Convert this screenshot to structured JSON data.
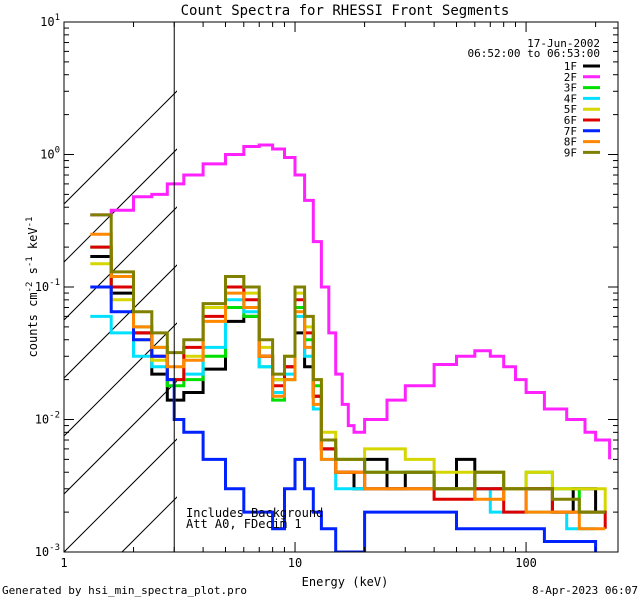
{
  "chart_data": {
    "type": "line",
    "title": "Count Spectra for RHESSI Front Segments",
    "xlabel": "Energy (keV)",
    "ylabel_parts": [
      "counts cm",
      "-2",
      " s",
      "-1",
      " keV",
      "-1"
    ],
    "x_scale": "log",
    "y_scale": "log",
    "xlim": [
      1,
      250
    ],
    "ylim": [
      0.001,
      10
    ],
    "x_ticks": [
      {
        "value": 1,
        "label": "1"
      },
      {
        "value": 10,
        "label": "10"
      },
      {
        "value": 100,
        "label": "100"
      }
    ],
    "y_ticks": [
      {
        "value": 0.001,
        "base": "10",
        "exp": "-3"
      },
      {
        "value": 0.01,
        "base": "10",
        "exp": "-2"
      },
      {
        "value": 0.1,
        "base": "10",
        "exp": "-1"
      },
      {
        "value": 1,
        "base": "10",
        "exp": "0"
      },
      {
        "value": 10,
        "base": "10",
        "exp": "1"
      }
    ],
    "date": "17-Jun-2002",
    "time_range": "06:52:00 to 06:53:00",
    "shaded_region": {
      "from": 1,
      "to": 3
    },
    "annotations": [
      "Includes Background",
      "Att A0, FDecim 1"
    ],
    "series": [
      {
        "name": "1F",
        "color": "#000000",
        "points": [
          [
            1.3,
            0.17
          ],
          [
            1.6,
            0.09
          ],
          [
            2,
            0.045
          ],
          [
            2.4,
            0.022
          ],
          [
            2.8,
            0.014
          ],
          [
            3.3,
            0.016
          ],
          [
            4,
            0.024
          ],
          [
            5,
            0.055
          ],
          [
            6,
            0.06
          ],
          [
            7,
            0.03
          ],
          [
            8,
            0.02
          ],
          [
            9,
            0.025
          ],
          [
            10,
            0.045
          ],
          [
            11,
            0.025
          ],
          [
            12,
            0.015
          ],
          [
            13,
            0.006
          ],
          [
            15,
            0.004
          ],
          [
            18,
            0.003
          ],
          [
            20,
            0.005
          ],
          [
            25,
            0.003
          ],
          [
            30,
            0.004
          ],
          [
            40,
            0.003
          ],
          [
            50,
            0.005
          ],
          [
            60,
            0.003
          ],
          [
            80,
            0.003
          ],
          [
            100,
            0.003
          ],
          [
            130,
            0.002
          ],
          [
            160,
            0.003
          ],
          [
            200,
            0.002
          ]
        ]
      },
      {
        "name": "2F",
        "color": "#ff22ff",
        "points": [
          [
            1.3,
            0.35
          ],
          [
            1.6,
            0.38
          ],
          [
            2,
            0.48
          ],
          [
            2.4,
            0.5
          ],
          [
            2.8,
            0.6
          ],
          [
            3.3,
            0.7
          ],
          [
            4,
            0.85
          ],
          [
            5,
            1.0
          ],
          [
            6,
            1.15
          ],
          [
            7,
            1.18
          ],
          [
            8,
            1.1
          ],
          [
            9,
            0.95
          ],
          [
            10,
            0.7
          ],
          [
            11,
            0.45
          ],
          [
            12,
            0.22
          ],
          [
            13,
            0.1
          ],
          [
            14,
            0.045
          ],
          [
            15,
            0.022
          ],
          [
            16,
            0.013
          ],
          [
            17,
            0.009
          ],
          [
            18,
            0.008
          ],
          [
            20,
            0.01
          ],
          [
            25,
            0.014
          ],
          [
            30,
            0.018
          ],
          [
            40,
            0.026
          ],
          [
            50,
            0.03
          ],
          [
            60,
            0.033
          ],
          [
            70,
            0.03
          ],
          [
            80,
            0.025
          ],
          [
            90,
            0.02
          ],
          [
            100,
            0.016
          ],
          [
            120,
            0.012
          ],
          [
            150,
            0.01
          ],
          [
            180,
            0.008
          ],
          [
            200,
            0.007
          ],
          [
            230,
            0.005
          ]
        ]
      },
      {
        "name": "3F",
        "color": "#00e000",
        "points": [
          [
            1.3,
            0.2
          ],
          [
            1.6,
            0.1
          ],
          [
            2,
            0.05
          ],
          [
            2.4,
            0.035
          ],
          [
            2.8,
            0.018
          ],
          [
            3.3,
            0.02
          ],
          [
            4,
            0.03
          ],
          [
            5,
            0.07
          ],
          [
            6,
            0.06
          ],
          [
            7,
            0.025
          ],
          [
            8,
            0.014
          ],
          [
            9,
            0.02
          ],
          [
            10,
            0.07
          ],
          [
            11,
            0.04
          ],
          [
            12,
            0.018
          ],
          [
            13,
            0.007
          ],
          [
            15,
            0.005
          ],
          [
            20,
            0.004
          ],
          [
            30,
            0.004
          ],
          [
            40,
            0.003
          ],
          [
            60,
            0.004
          ],
          [
            80,
            0.003
          ],
          [
            100,
            0.004
          ],
          [
            130,
            0.003
          ],
          [
            170,
            0.002
          ],
          [
            220,
            0.002
          ]
        ]
      },
      {
        "name": "4F",
        "color": "#00e0ff",
        "points": [
          [
            1.3,
            0.06
          ],
          [
            1.6,
            0.045
          ],
          [
            2,
            0.03
          ],
          [
            2.4,
            0.025
          ],
          [
            2.8,
            0.02
          ],
          [
            3.3,
            0.022
          ],
          [
            4,
            0.035
          ],
          [
            5,
            0.08
          ],
          [
            6,
            0.065
          ],
          [
            7,
            0.025
          ],
          [
            8,
            0.016
          ],
          [
            9,
            0.022
          ],
          [
            10,
            0.06
          ],
          [
            11,
            0.03
          ],
          [
            12,
            0.012
          ],
          [
            13,
            0.005
          ],
          [
            15,
            0.003
          ],
          [
            20,
            0.003
          ],
          [
            30,
            0.003
          ],
          [
            50,
            0.003
          ],
          [
            70,
            0.002
          ],
          [
            100,
            0.002
          ],
          [
            150,
            0.0015
          ],
          [
            200,
            0.0015
          ]
        ]
      },
      {
        "name": "5F",
        "color": "#d6d600",
        "points": [
          [
            1.3,
            0.15
          ],
          [
            1.6,
            0.08
          ],
          [
            2,
            0.04
          ],
          [
            2.4,
            0.028
          ],
          [
            2.8,
            0.02
          ],
          [
            3.3,
            0.03
          ],
          [
            4,
            0.07
          ],
          [
            5,
            0.12
          ],
          [
            6,
            0.09
          ],
          [
            7,
            0.035
          ],
          [
            8,
            0.02
          ],
          [
            9,
            0.03
          ],
          [
            10,
            0.09
          ],
          [
            11,
            0.05
          ],
          [
            12,
            0.02
          ],
          [
            13,
            0.008
          ],
          [
            15,
            0.005
          ],
          [
            20,
            0.006
          ],
          [
            30,
            0.005
          ],
          [
            40,
            0.004
          ],
          [
            60,
            0.004
          ],
          [
            80,
            0.003
          ],
          [
            100,
            0.004
          ],
          [
            130,
            0.003
          ],
          [
            170,
            0.003
          ],
          [
            220,
            0.002
          ]
        ]
      },
      {
        "name": "6F",
        "color": "#dd0000",
        "points": [
          [
            1.3,
            0.2
          ],
          [
            1.6,
            0.1
          ],
          [
            2,
            0.045
          ],
          [
            2.4,
            0.03
          ],
          [
            2.8,
            0.02
          ],
          [
            3.3,
            0.035
          ],
          [
            4,
            0.06
          ],
          [
            5,
            0.1
          ],
          [
            6,
            0.08
          ],
          [
            7,
            0.03
          ],
          [
            8,
            0.018
          ],
          [
            9,
            0.025
          ],
          [
            10,
            0.08
          ],
          [
            11,
            0.045
          ],
          [
            12,
            0.015
          ],
          [
            13,
            0.006
          ],
          [
            15,
            0.004
          ],
          [
            20,
            0.003
          ],
          [
            30,
            0.003
          ],
          [
            40,
            0.0025
          ],
          [
            60,
            0.003
          ],
          [
            80,
            0.002
          ],
          [
            100,
            0.003
          ],
          [
            130,
            0.002
          ],
          [
            170,
            0.002
          ],
          [
            220,
            0.0015
          ]
        ]
      },
      {
        "name": "7F",
        "color": "#0022ff",
        "points": [
          [
            1.3,
            0.1
          ],
          [
            1.6,
            0.065
          ],
          [
            2,
            0.04
          ],
          [
            2.4,
            0.03
          ],
          [
            2.8,
            0.02
          ],
          [
            3,
            0.01
          ],
          [
            3.3,
            0.008
          ],
          [
            4,
            0.005
          ],
          [
            5,
            0.003
          ],
          [
            6,
            0.002
          ],
          [
            7,
            0.002
          ],
          [
            8,
            0.0015
          ],
          [
            9,
            0.003
          ],
          [
            10,
            0.005
          ],
          [
            11,
            0.003
          ],
          [
            12,
            0.002
          ],
          [
            13,
            0.0015
          ],
          [
            15,
            0.001
          ],
          [
            20,
            0.002
          ],
          [
            30,
            0.002
          ],
          [
            50,
            0.0015
          ],
          [
            80,
            0.0015
          ],
          [
            120,
            0.0012
          ],
          [
            200,
            0.001
          ]
        ]
      },
      {
        "name": "8F",
        "color": "#ff8800",
        "points": [
          [
            1.3,
            0.25
          ],
          [
            1.6,
            0.12
          ],
          [
            2,
            0.05
          ],
          [
            2.4,
            0.035
          ],
          [
            2.8,
            0.025
          ],
          [
            3.3,
            0.028
          ],
          [
            4,
            0.055
          ],
          [
            5,
            0.09
          ],
          [
            6,
            0.07
          ],
          [
            7,
            0.03
          ],
          [
            8,
            0.015
          ],
          [
            9,
            0.02
          ],
          [
            10,
            0.065
          ],
          [
            11,
            0.035
          ],
          [
            12,
            0.013
          ],
          [
            13,
            0.005
          ],
          [
            15,
            0.004
          ],
          [
            20,
            0.003
          ],
          [
            30,
            0.003
          ],
          [
            40,
            0.003
          ],
          [
            60,
            0.0025
          ],
          [
            80,
            0.003
          ],
          [
            100,
            0.002
          ],
          [
            130,
            0.002
          ],
          [
            170,
            0.0015
          ],
          [
            220,
            0.0015
          ]
        ]
      },
      {
        "name": "9F",
        "color": "#808000",
        "points": [
          [
            1.3,
            0.35
          ],
          [
            1.6,
            0.13
          ],
          [
            2,
            0.065
          ],
          [
            2.4,
            0.045
          ],
          [
            2.8,
            0.032
          ],
          [
            3.3,
            0.04
          ],
          [
            4,
            0.075
          ],
          [
            5,
            0.12
          ],
          [
            6,
            0.1
          ],
          [
            7,
            0.04
          ],
          [
            8,
            0.022
          ],
          [
            9,
            0.03
          ],
          [
            10,
            0.1
          ],
          [
            11,
            0.06
          ],
          [
            12,
            0.02
          ],
          [
            13,
            0.007
          ],
          [
            15,
            0.005
          ],
          [
            20,
            0.004
          ],
          [
            30,
            0.004
          ],
          [
            40,
            0.003
          ],
          [
            60,
            0.004
          ],
          [
            80,
            0.003
          ],
          [
            100,
            0.003
          ],
          [
            130,
            0.0025
          ],
          [
            170,
            0.002
          ],
          [
            220,
            0.002
          ]
        ]
      }
    ]
  },
  "footer": {
    "left": "Generated by hsi_min_spectra_plot.pro",
    "right": "8-Apr-2023 06:07"
  }
}
